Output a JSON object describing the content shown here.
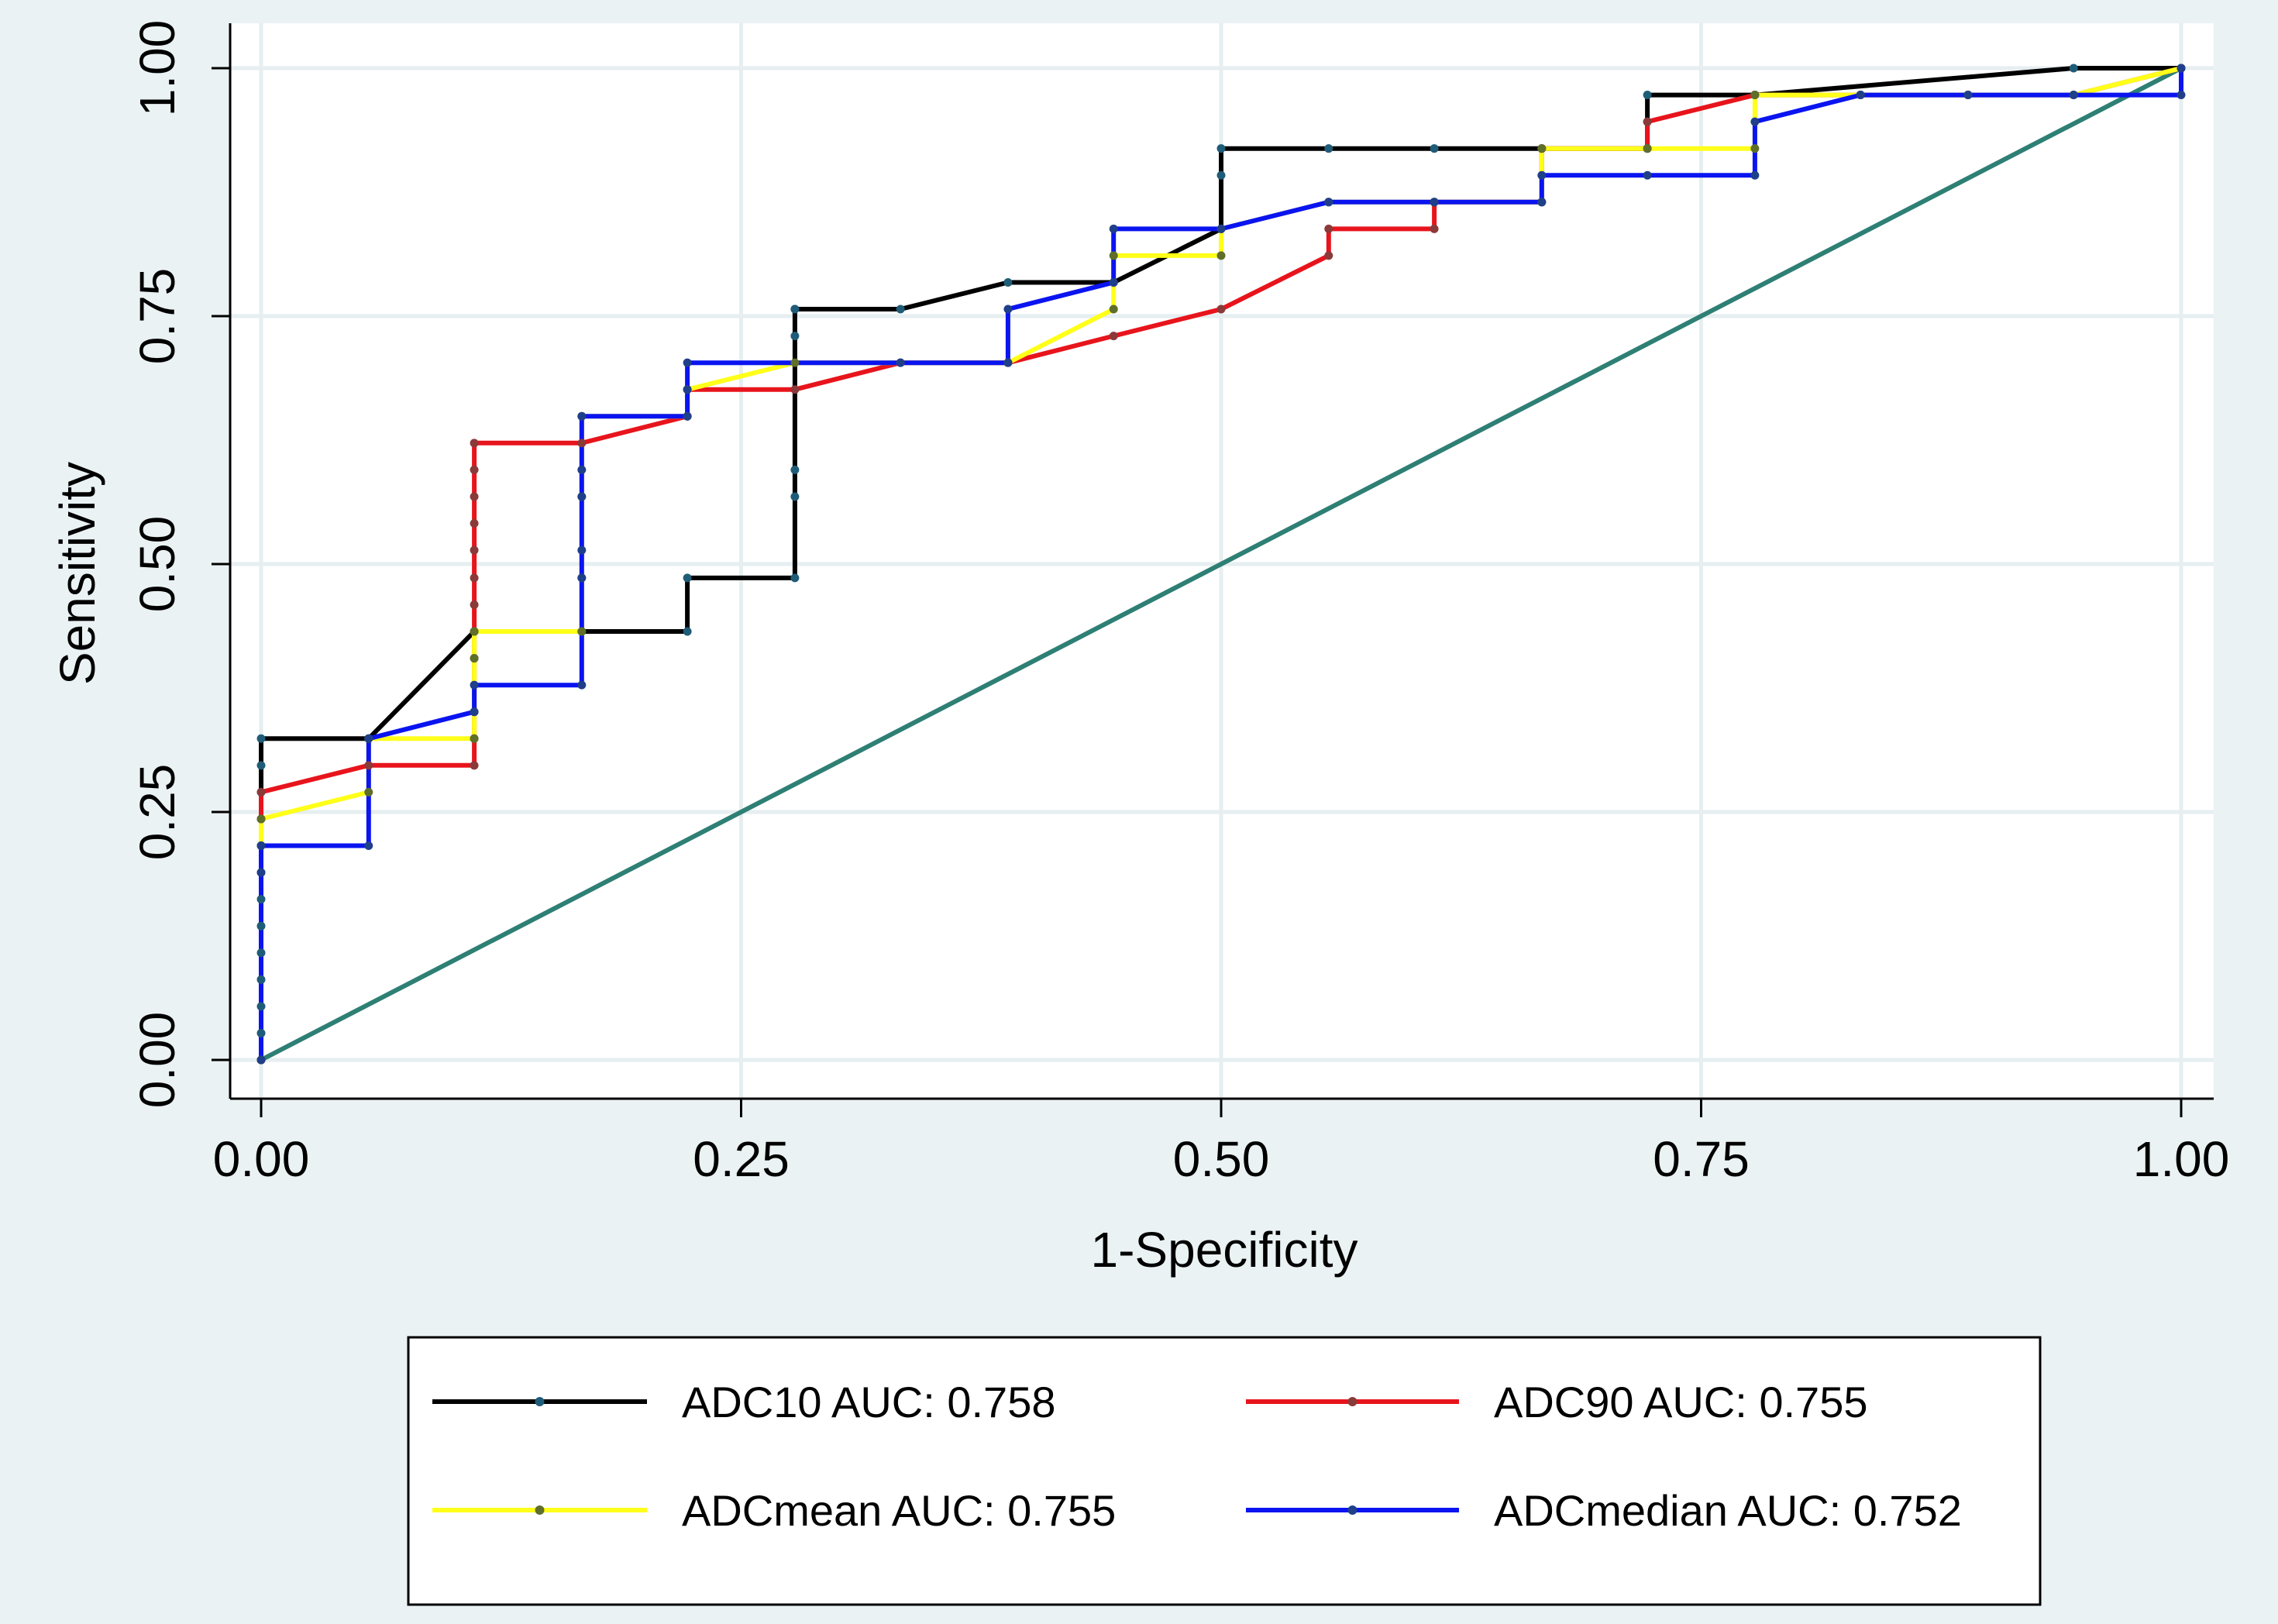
{
  "chart_data": {
    "type": "line",
    "title": "",
    "xlabel": "1-Specificity",
    "ylabel": "Sensitivity",
    "xlim": [
      0,
      1
    ],
    "ylim": [
      0,
      1
    ],
    "xticks": [
      "0.00",
      "0.25",
      "0.50",
      "0.75",
      "1.00"
    ],
    "yticks": [
      "0.00",
      "0.25",
      "0.50",
      "0.75",
      "1.00"
    ],
    "grid": true,
    "legend_position": "bottom",
    "reference_line": {
      "x": [
        0,
        1
      ],
      "y": [
        0,
        1
      ],
      "color": "#2e7f74"
    },
    "series": [
      {
        "name": "ADC10 AUC: 0.758",
        "color": "#000000",
        "marker_color": "#1f5c78",
        "x": [
          0,
          0,
          0,
          0,
          0,
          0,
          0,
          0,
          0,
          0,
          0,
          0,
          0,
          0.056,
          0.111,
          0.167,
          0.222,
          0.222,
          0.278,
          0.278,
          0.278,
          0.278,
          0.278,
          0.278,
          0.333,
          0.389,
          0.444,
          0.5,
          0.5,
          0.5,
          0.556,
          0.611,
          0.667,
          0.722,
          0.722,
          0.722,
          0.778,
          0.944,
          1.0
        ],
        "y": [
          0,
          0.027,
          0.054,
          0.081,
          0.108,
          0.135,
          0.162,
          0.189,
          0.216,
          0.243,
          0.27,
          0.297,
          0.324,
          0.324,
          0.432,
          0.432,
          0.432,
          0.486,
          0.486,
          0.568,
          0.595,
          0.73,
          0.757,
          0.757,
          0.757,
          0.784,
          0.784,
          0.838,
          0.892,
          0.919,
          0.919,
          0.919,
          0.919,
          0.919,
          0.946,
          0.973,
          0.973,
          1.0,
          1.0
        ]
      },
      {
        "name": "ADC90 AUC: 0.755",
        "color": "#e8141c",
        "marker_color": "#8b3a3a",
        "x": [
          0,
          0,
          0,
          0.056,
          0.111,
          0.111,
          0.111,
          0.111,
          0.111,
          0.111,
          0.111,
          0.111,
          0.111,
          0.111,
          0.111,
          0.111,
          0.167,
          0.222,
          0.222,
          0.278,
          0.333,
          0.389,
          0.444,
          0.5,
          0.556,
          0.556,
          0.611,
          0.611,
          0.667,
          0.667,
          0.722,
          0.722,
          0.778,
          0.833,
          0.889,
          0.944,
          1.0
        ],
        "y": [
          0,
          0.243,
          0.27,
          0.297,
          0.297,
          0.324,
          0.351,
          0.405,
          0.432,
          0.459,
          0.486,
          0.514,
          0.541,
          0.568,
          0.595,
          0.622,
          0.622,
          0.649,
          0.676,
          0.676,
          0.703,
          0.703,
          0.73,
          0.757,
          0.811,
          0.838,
          0.838,
          0.865,
          0.865,
          0.919,
          0.919,
          0.946,
          0.973,
          0.973,
          0.973,
          0.973,
          1.0
        ]
      },
      {
        "name": "ADCmean AUC: 0.755",
        "color": "#ffff1a",
        "marker_color": "#5f6f2a",
        "x": [
          0,
          0,
          0,
          0.056,
          0.056,
          0.111,
          0.111,
          0.111,
          0.111,
          0.167,
          0.167,
          0.167,
          0.167,
          0.222,
          0.222,
          0.278,
          0.389,
          0.444,
          0.444,
          0.5,
          0.5,
          0.556,
          0.611,
          0.667,
          0.667,
          0.722,
          0.778,
          0.778,
          0.833,
          0.889,
          0.944,
          1.0
        ],
        "y": [
          0,
          0.216,
          0.243,
          0.27,
          0.324,
          0.324,
          0.405,
          0.432,
          0.432,
          0.432,
          0.486,
          0.568,
          0.649,
          0.649,
          0.676,
          0.703,
          0.703,
          0.757,
          0.811,
          0.811,
          0.838,
          0.865,
          0.865,
          0.865,
          0.919,
          0.919,
          0.919,
          0.973,
          0.973,
          0.973,
          0.973,
          1.0
        ]
      },
      {
        "name": "ADCmedian AUC: 0.752",
        "color": "#0a14f0",
        "marker_color": "#1f3f8a",
        "x": [
          0,
          0,
          0,
          0.056,
          0.056,
          0.111,
          0.111,
          0.167,
          0.167,
          0.167,
          0.167,
          0.167,
          0.167,
          0.222,
          0.222,
          0.222,
          0.333,
          0.389,
          0.389,
          0.444,
          0.444,
          0.5,
          0.556,
          0.611,
          0.667,
          0.667,
          0.722,
          0.778,
          0.778,
          0.833,
          0.889,
          0.944,
          1.0,
          1.0
        ],
        "y": [
          0,
          0.189,
          0.216,
          0.216,
          0.324,
          0.351,
          0.378,
          0.378,
          0.486,
          0.514,
          0.568,
          0.595,
          0.649,
          0.649,
          0.676,
          0.703,
          0.703,
          0.703,
          0.757,
          0.784,
          0.838,
          0.838,
          0.865,
          0.865,
          0.865,
          0.892,
          0.892,
          0.892,
          0.946,
          0.973,
          0.973,
          0.973,
          0.973,
          1.0
        ]
      }
    ]
  }
}
